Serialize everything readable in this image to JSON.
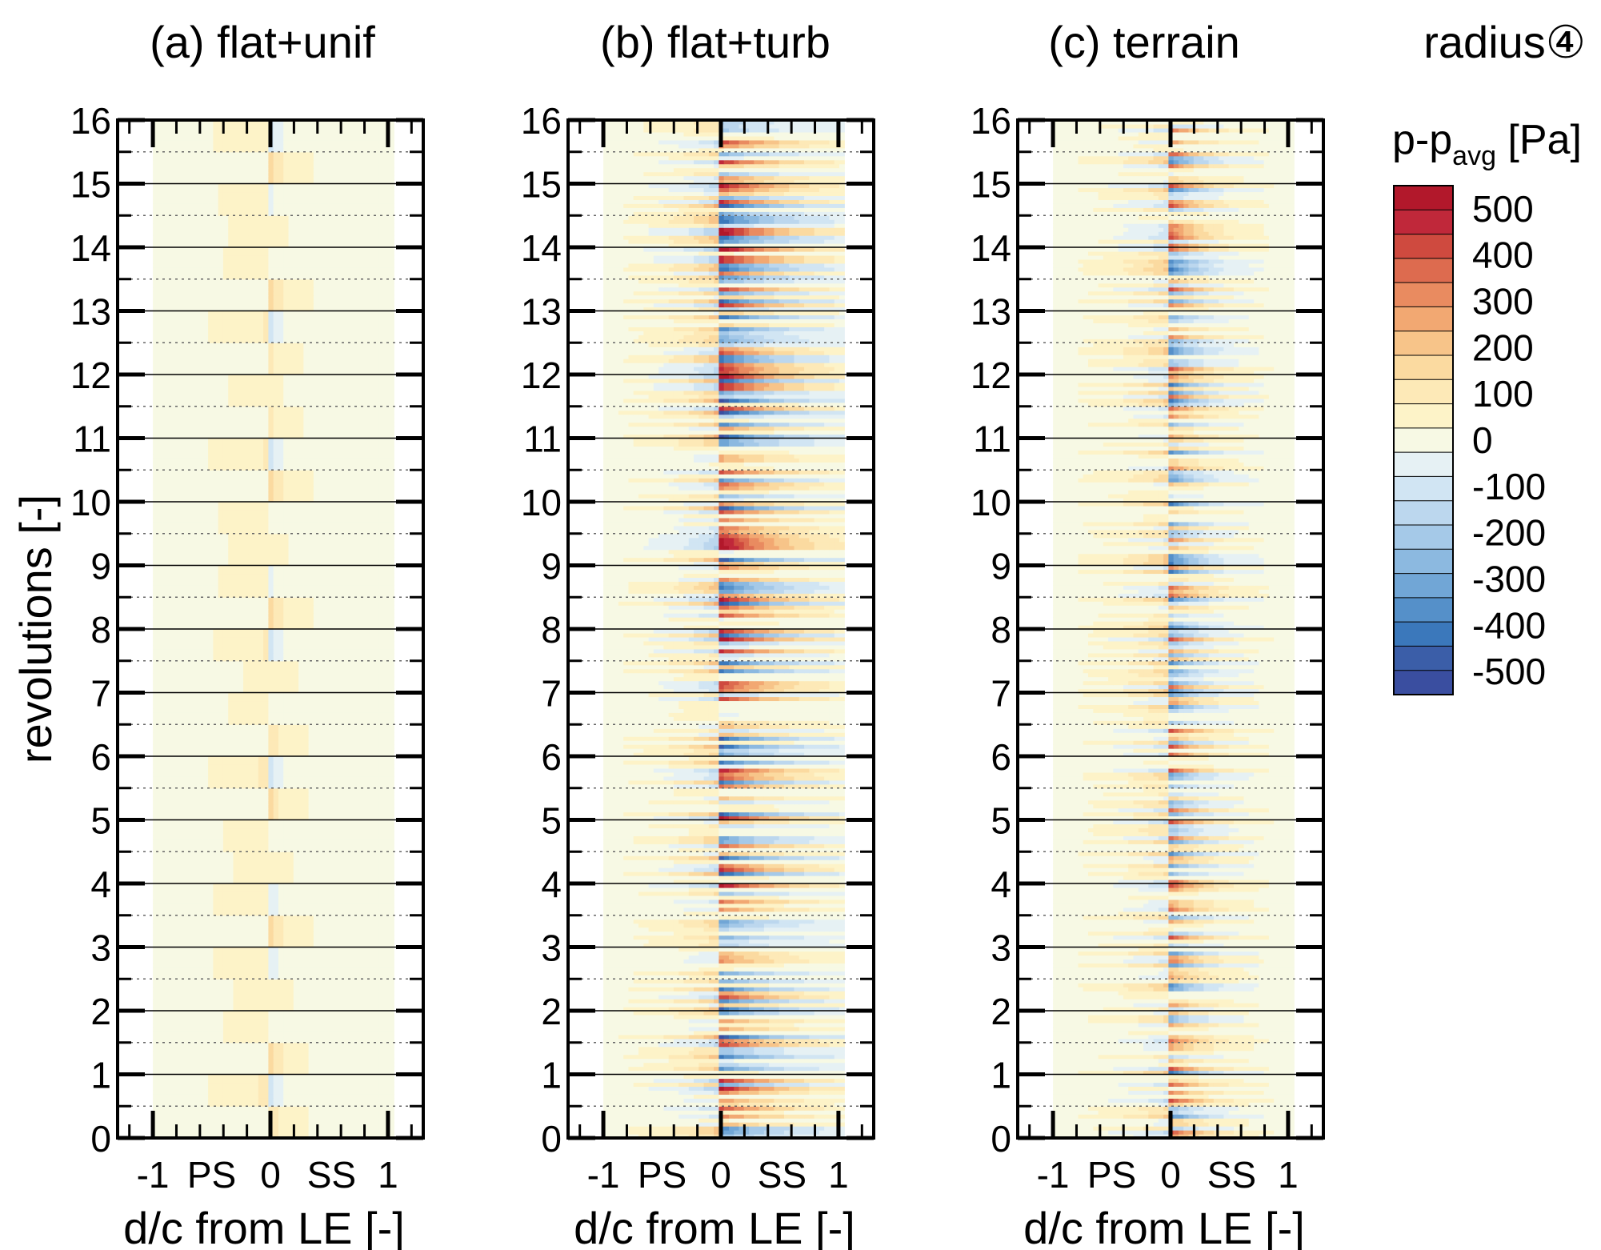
{
  "chart_data": [
    {
      "type": "heatmap",
      "id": "a",
      "title": "(a) flat+unif",
      "xlabel": "d/c from LE [-]",
      "ylabel": "revolutions [-]",
      "xlim": [
        -1.3,
        1.3
      ],
      "ylim": [
        0,
        16
      ],
      "xticks": [
        "-1",
        "0",
        "1"
      ],
      "x_region_labels": [
        "PS",
        "SS"
      ],
      "yticks": [
        "0",
        "1",
        "2",
        "3",
        "4",
        "5",
        "6",
        "7",
        "8",
        "9",
        "10",
        "11",
        "12",
        "13",
        "14",
        "15",
        "16"
      ],
      "data_x_extent": [
        -1.0,
        1.05
      ],
      "pattern": "periodic",
      "peak_pressure_Pa": 150
    },
    {
      "type": "heatmap",
      "id": "b",
      "title": "(b) flat+turb",
      "xlabel": "d/c from LE [-]",
      "ylabel": "",
      "xlim": [
        -1.3,
        1.3
      ],
      "ylim": [
        0,
        16
      ],
      "xticks": [
        "-1",
        "0",
        "1"
      ],
      "x_region_labels": [
        "PS",
        "SS"
      ],
      "yticks": [
        "0",
        "1",
        "2",
        "3",
        "4",
        "5",
        "6",
        "7",
        "8",
        "9",
        "10",
        "11",
        "12",
        "13",
        "14",
        "15",
        "16"
      ],
      "data_x_extent": [
        -1.0,
        1.05
      ],
      "pattern": "turbulent",
      "peak_pressure_Pa": 550
    },
    {
      "type": "heatmap",
      "id": "c",
      "title": "(c) terrain",
      "xlabel": "d/c from LE [-]",
      "ylabel": "",
      "xlim": [
        -1.3,
        1.3
      ],
      "ylim": [
        0,
        16
      ],
      "xticks": [
        "-1",
        "0",
        "1"
      ],
      "x_region_labels": [
        "PS",
        "SS"
      ],
      "yticks": [
        "0",
        "1",
        "2",
        "3",
        "4",
        "5",
        "6",
        "7",
        "8",
        "9",
        "10",
        "11",
        "12",
        "13",
        "14",
        "15",
        "16"
      ],
      "data_x_extent": [
        -1.0,
        1.05
      ],
      "pattern": "terrain",
      "peak_pressure_Pa": 500
    }
  ],
  "legend": {
    "title": "radius④",
    "colorbar_label": "p-p",
    "colorbar_label_sub": "avg",
    "colorbar_label_unit": " [Pa]",
    "range": [
      -550,
      550
    ],
    "ticks": [
      "500",
      "400",
      "300",
      "200",
      "100",
      "0",
      "-100",
      "-200",
      "-300",
      "-400",
      "-500"
    ],
    "colors": [
      "#b2182b",
      "#c0283a",
      "#cf4a3f",
      "#dd6b4f",
      "#e98b60",
      "#f2a872",
      "#f7c489",
      "#fbdaa0",
      "#fde9b7",
      "#fdf3c8",
      "#f7f9e4",
      "#e6f1f4",
      "#d1e5f3",
      "#bcd7ee",
      "#a5c9e8",
      "#8cb9e0",
      "#71a6d6",
      "#5590c9",
      "#3b78bb",
      "#3b5ea8",
      "#3a4ea0"
    ]
  }
}
